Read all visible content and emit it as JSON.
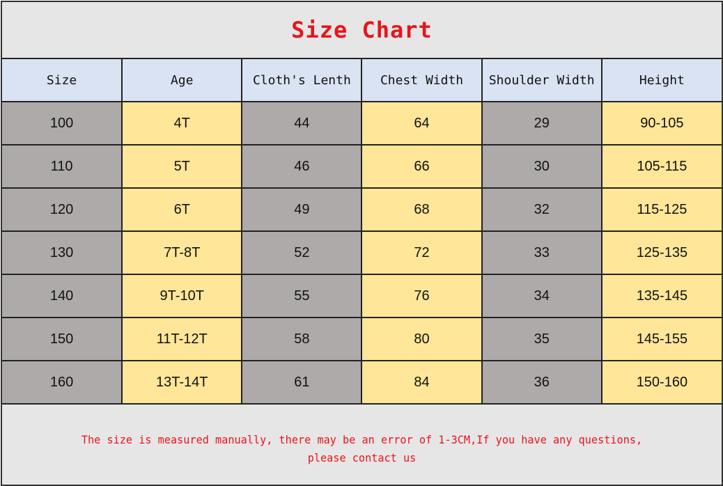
{
  "chart_data": {
    "type": "table",
    "title": "Size Chart",
    "columns": [
      "Size",
      "Age",
      "Cloth's Lenth",
      "Chest Width",
      "Shoulder Width",
      "Height"
    ],
    "rows": [
      [
        "100",
        "4T",
        "44",
        "64",
        "29",
        "90-105"
      ],
      [
        "110",
        "5T",
        "46",
        "66",
        "30",
        "105-115"
      ],
      [
        "120",
        "6T",
        "49",
        "68",
        "32",
        "115-125"
      ],
      [
        "130",
        "7T-8T",
        "52",
        "72",
        "33",
        "125-135"
      ],
      [
        "140",
        "9T-10T",
        "55",
        "76",
        "34",
        "135-145"
      ],
      [
        "150",
        "11T-12T",
        "58",
        "80",
        "35",
        "145-155"
      ],
      [
        "160",
        "13T-14T",
        "61",
        "84",
        "36",
        "150-160"
      ]
    ],
    "note_lines": [
      "The size is measured manually, there may be an error of 1-3CM,If you have any questions,",
      "please contact us"
    ]
  },
  "colors": {
    "title": "#e8141b",
    "header_bg": "#dae3f3",
    "gray_cell": "#aeaaaa",
    "yellow_cell": "#ffe699",
    "background": "#e7e6e6"
  }
}
